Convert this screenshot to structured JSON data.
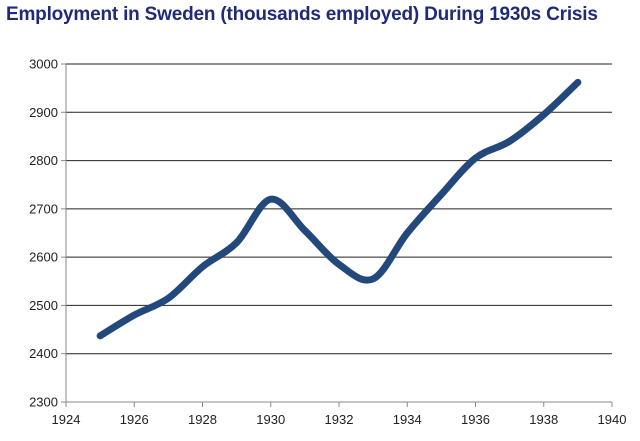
{
  "chart_data": {
    "type": "line",
    "title": "Employment in Sweden (thousands employed) During 1930s Crisis",
    "xlabel": "",
    "ylabel": "",
    "xlim": [
      1924,
      1940
    ],
    "ylim": [
      2300,
      3000
    ],
    "x_ticks": [
      1924,
      1926,
      1928,
      1930,
      1932,
      1934,
      1936,
      1938,
      1940
    ],
    "y_ticks": [
      2300,
      2400,
      2500,
      2600,
      2700,
      2800,
      2900,
      3000
    ],
    "grid": "horizontal",
    "legend": "none",
    "series": [
      {
        "color": "#23497c",
        "x": [
          1925,
          1926,
          1927,
          1928,
          1929,
          1930,
          1931,
          1932,
          1933,
          1934,
          1935,
          1936,
          1937,
          1938,
          1939
        ],
        "values": [
          2437,
          2480,
          2515,
          2580,
          2630,
          2720,
          2655,
          2585,
          2555,
          2650,
          2730,
          2805,
          2840,
          2895,
          2962
        ]
      }
    ]
  }
}
